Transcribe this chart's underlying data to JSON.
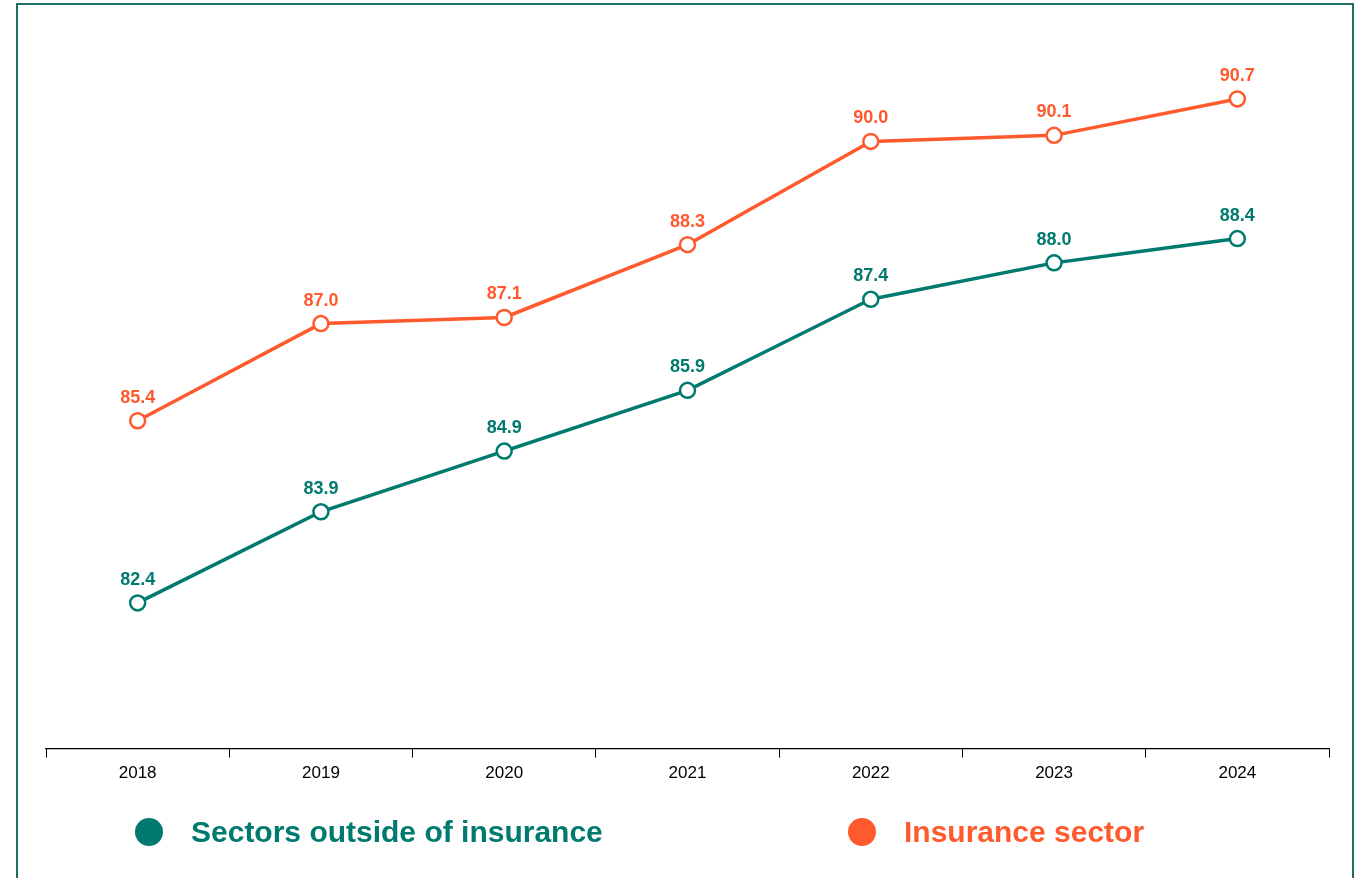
{
  "chart_data": {
    "type": "line",
    "categories": [
      "2018",
      "2019",
      "2020",
      "2021",
      "2022",
      "2023",
      "2024"
    ],
    "series": [
      {
        "name": "Sectors outside of insurance",
        "color": "#007a6e",
        "values": [
          82.4,
          83.9,
          84.9,
          85.9,
          87.4,
          88.0,
          88.4
        ],
        "value_labels": [
          "82.4",
          "83.9",
          "84.9",
          "85.9",
          "87.4",
          "88.0",
          "88.4"
        ]
      },
      {
        "name": "Insurance sector",
        "color": "#ff5a2d",
        "values": [
          85.4,
          87.0,
          87.1,
          88.3,
          90.0,
          90.1,
          90.7
        ],
        "value_labels": [
          "85.4",
          "87.0",
          "87.1",
          "88.3",
          "90.0",
          "90.1",
          "90.7"
        ]
      }
    ],
    "marker": "circle",
    "line_style": "solid",
    "grid": false,
    "legend": "bottom",
    "tick_labels": "x"
  }
}
